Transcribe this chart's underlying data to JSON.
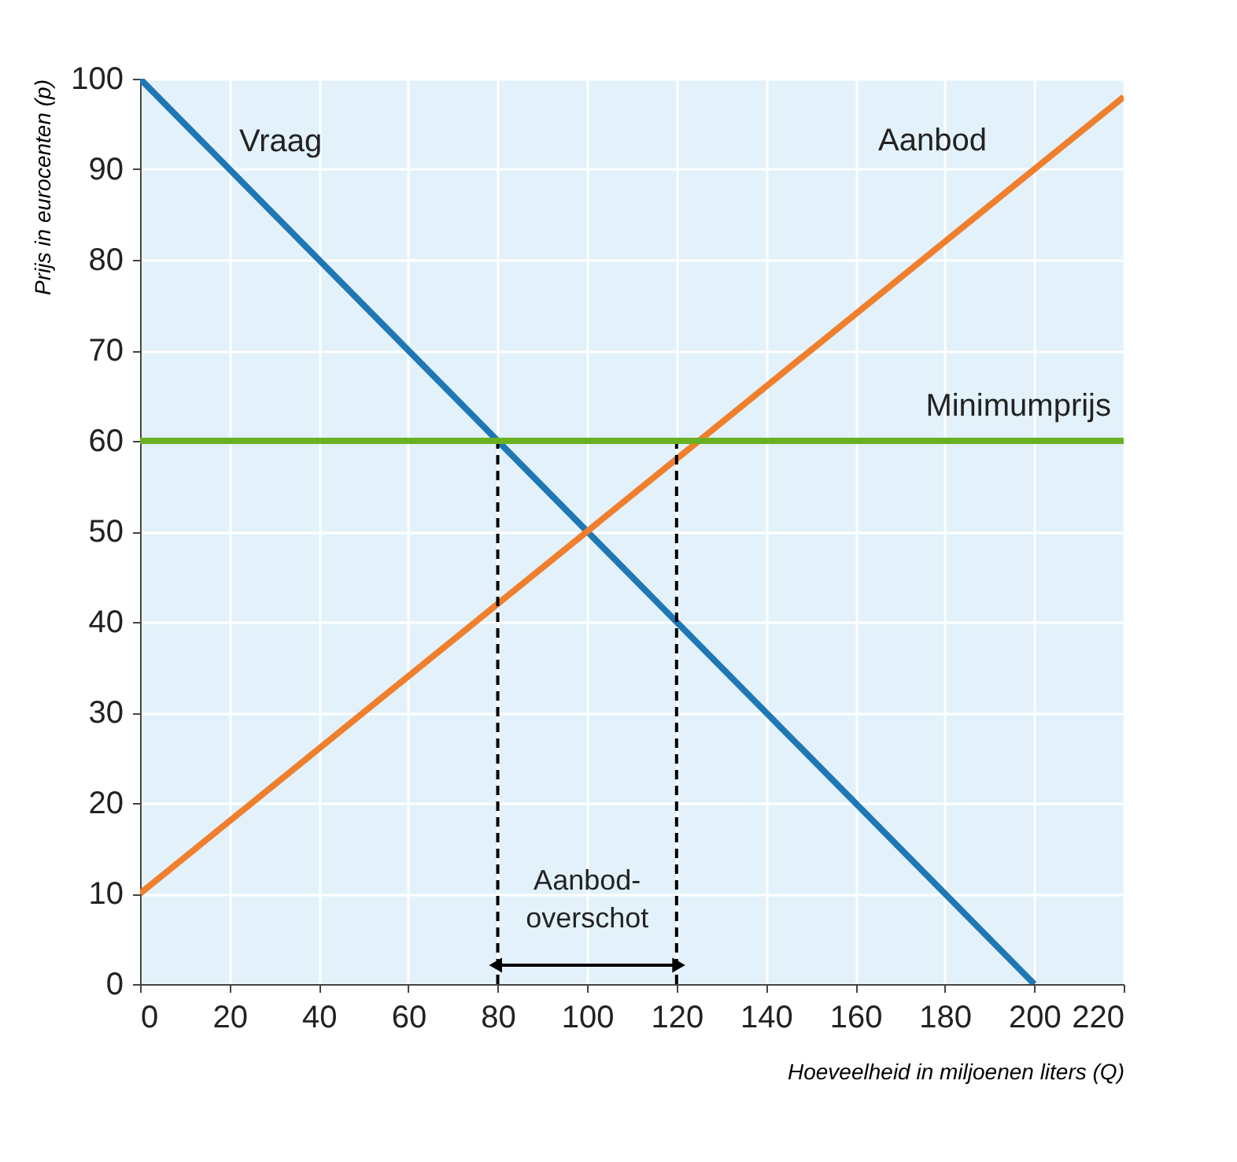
{
  "chart_data": {
    "type": "line",
    "xlabel": "Hoeveelheid in miljoenen liters (Q)",
    "ylabel": "Prijs in eurocenten (p)",
    "xlim": [
      0,
      220
    ],
    "xticks": [
      0,
      20,
      40,
      60,
      80,
      100,
      120,
      140,
      160,
      180,
      200,
      220
    ],
    "ylim": [
      0,
      100
    ],
    "yticks": [
      0,
      10,
      20,
      30,
      40,
      50,
      60,
      70,
      80,
      90,
      100
    ],
    "grid": true,
    "marker": "none",
    "series": [
      {
        "name": "Vraag",
        "color": "#1f77b4",
        "x": [
          0,
          200
        ],
        "values": [
          100,
          0
        ]
      },
      {
        "name": "Aanbod",
        "color": "#f07f2d",
        "x": [
          0,
          220
        ],
        "values": [
          10,
          98
        ]
      },
      {
        "color": "#000000",
        "line_style": "dashed",
        "x": [
          80,
          80
        ],
        "values": [
          0,
          60
        ]
      },
      {
        "color": "#000000",
        "line_style": "dashed",
        "x": [
          120,
          120
        ],
        "values": [
          0,
          60
        ]
      }
    ],
    "ref_lines": [
      {
        "axis": "y",
        "value": 60,
        "label": "Minimumprijs",
        "color": "#6ab023"
      }
    ],
    "annotations": [
      "Aanbod-\noverschot"
    ]
  }
}
